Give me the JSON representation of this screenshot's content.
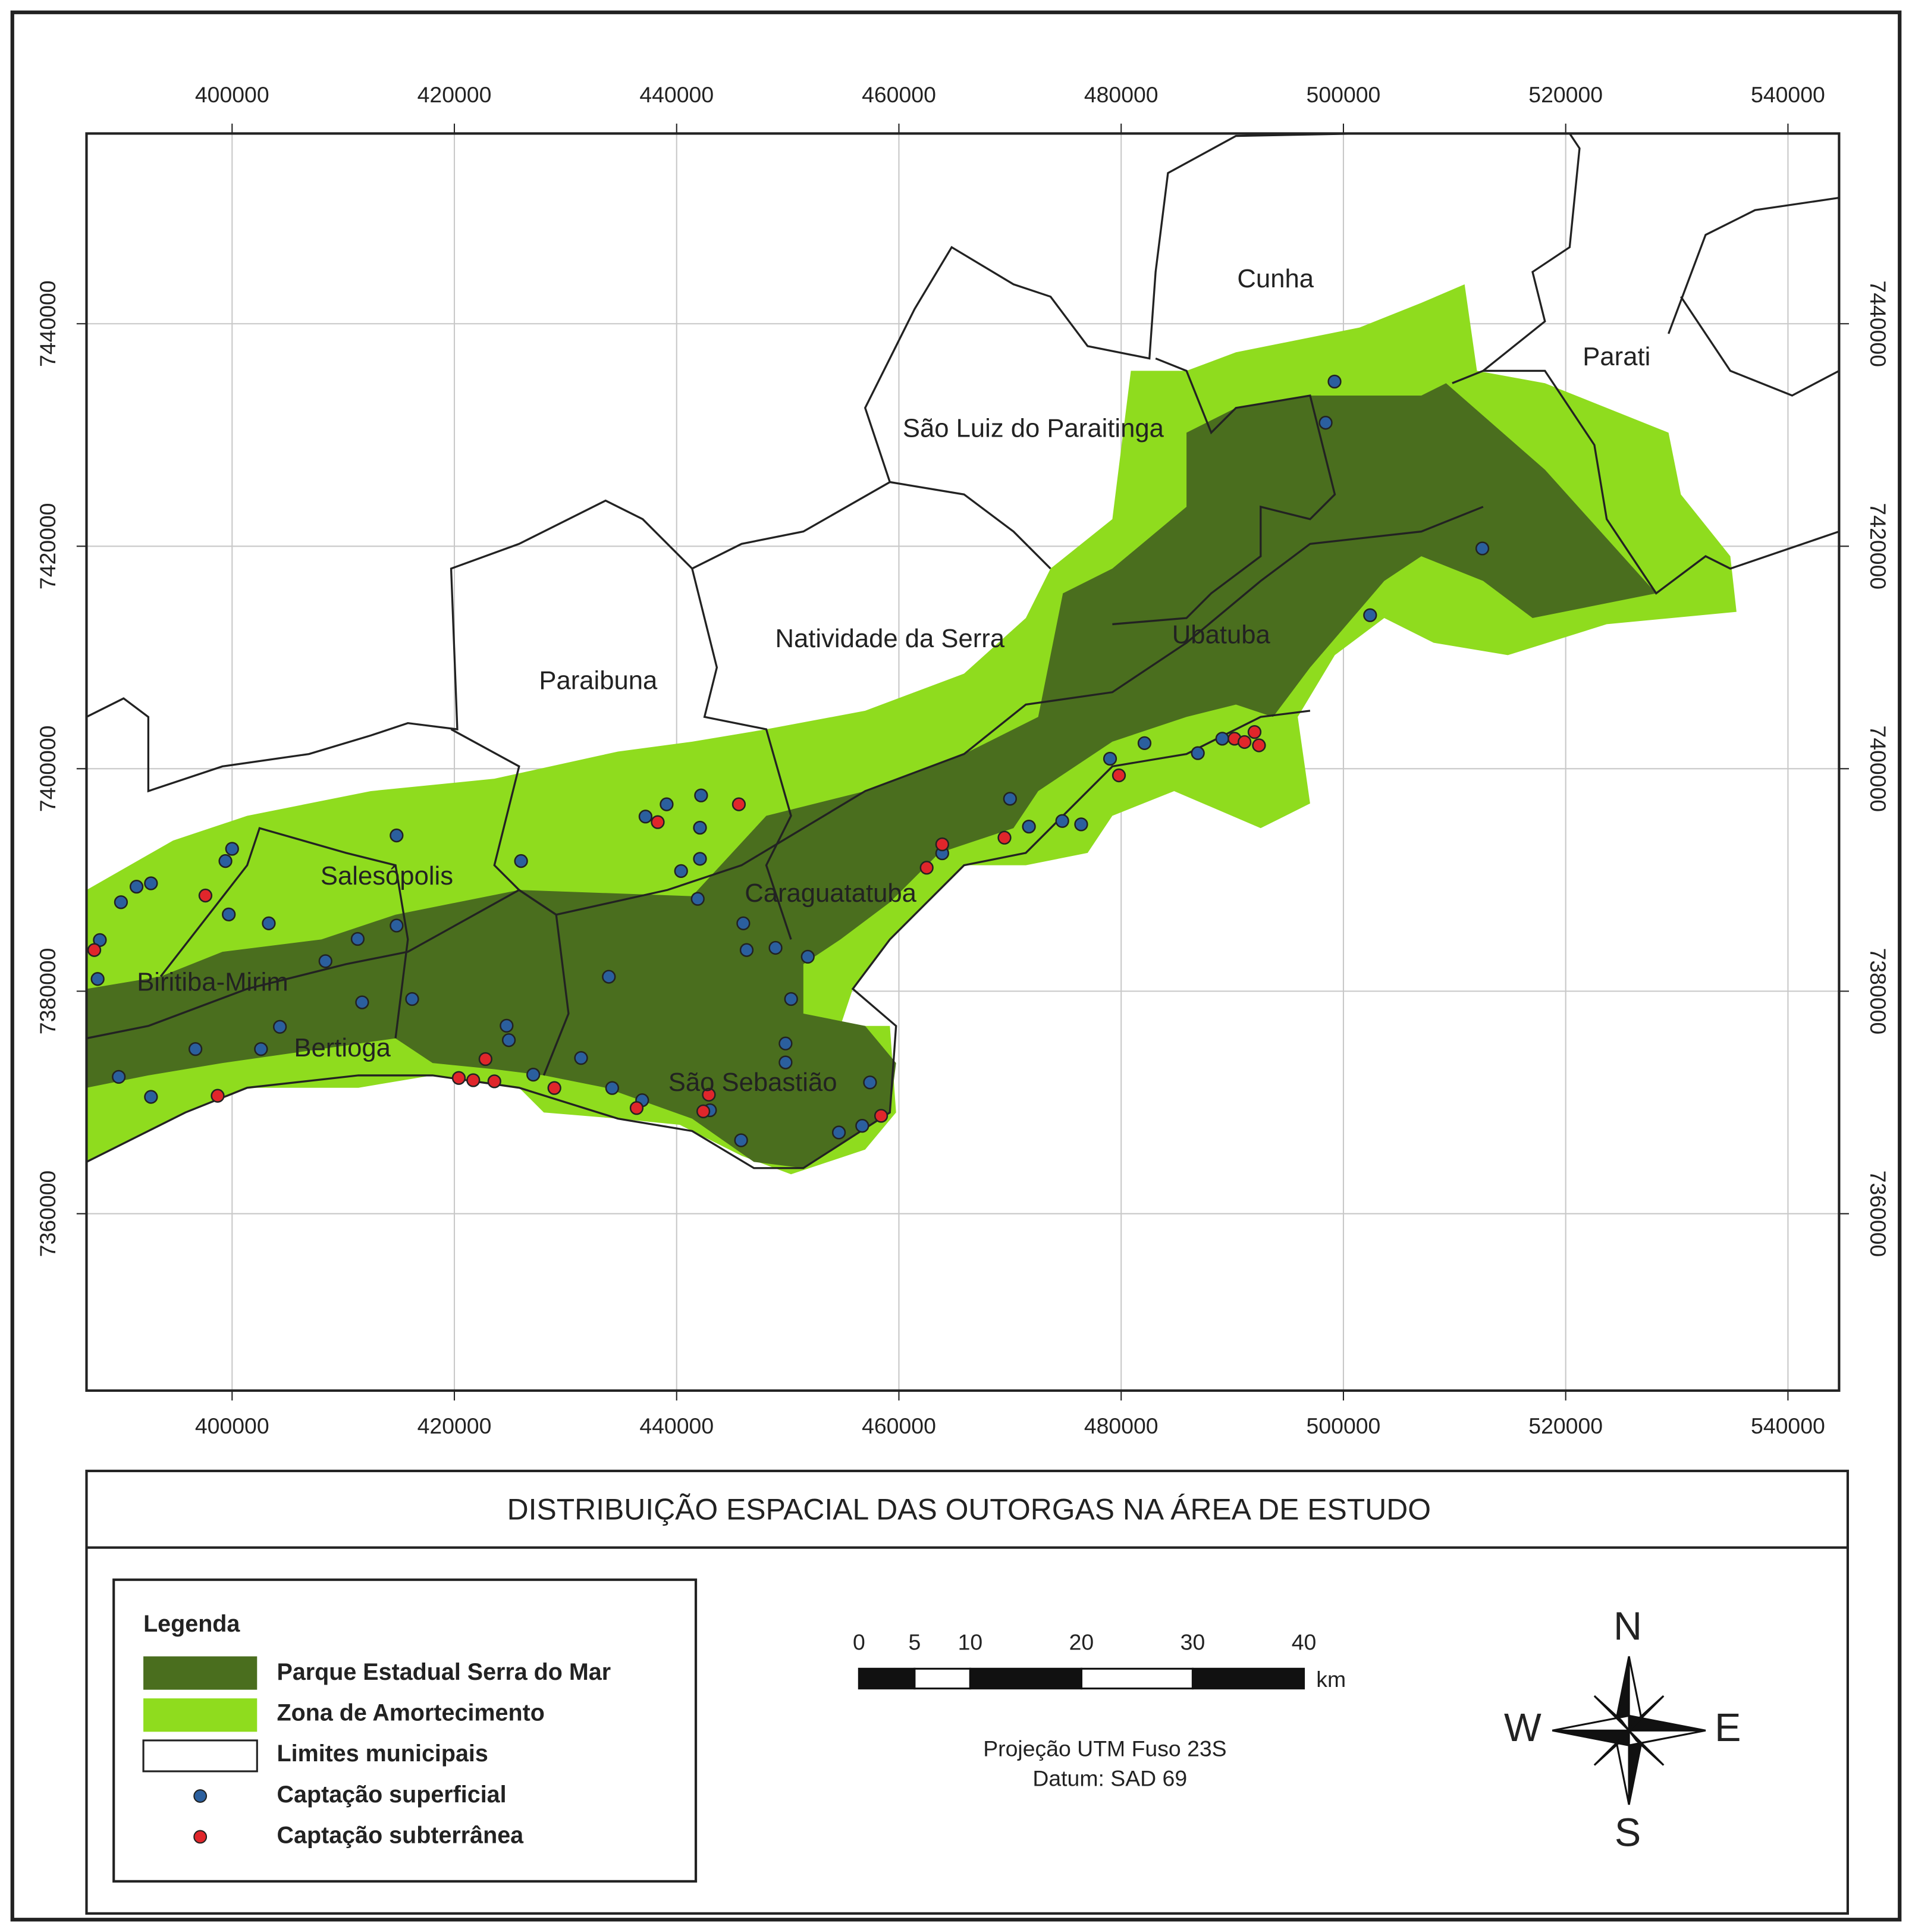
{
  "map": {
    "title": "DISTRIBUIÇÃO  ESPACIAL  DAS  OUTORGAS NA  ÁREA  DE ESTUDO",
    "xlim": [
      386900,
      544600
    ],
    "ylim": [
      7344100,
      7457100
    ],
    "xticks": [
      400000,
      420000,
      440000,
      460000,
      480000,
      500000,
      520000,
      540000
    ],
    "yticks": [
      7360000,
      7380000,
      7400000,
      7420000,
      7440000
    ],
    "grid": true,
    "places": [
      "Cunha",
      "Parati",
      "São Luiz do Paraitinga",
      "Natividade da Serra",
      "Paraibuna",
      "Ubatuba",
      "Salesópolis",
      "Caraguatatuba",
      "Biritiba-Mirim",
      "Bertioga",
      "São Sebastião"
    ],
    "series": [
      {
        "name": "Captação superficial",
        "color": "#2b5f9e",
        "x": [
          499200,
          498400,
          512500,
          502400,
          479000,
          482100,
          486900,
          489100,
          470000,
          471700,
          474700,
          476400,
          463900,
          439100,
          442200,
          437200,
          442100,
          442100,
          440400,
          441900,
          446000,
          446300,
          448900,
          451800,
          450300,
          449800,
          449800,
          445800,
          454600,
          456700,
          457400,
          433900,
          431400,
          434200,
          436900,
          443000,
          424700,
          424900,
          427100,
          414800,
          426000,
          400000,
          399400,
          392700,
          391400,
          390000,
          403300,
          399700,
          408400,
          411300,
          414800,
          416200,
          411700,
          404300,
          402600,
          396700,
          389800,
          392700,
          387900,
          388100
        ],
        "y": [
          7434800,
          7431100,
          7419800,
          7413800,
          7400900,
          7402300,
          7401400,
          7402700,
          7397300,
          7394800,
          7395300,
          7395000,
          7392400,
          7396800,
          7397600,
          7395700,
          7394700,
          7391900,
          7390800,
          7388300,
          7386100,
          7383700,
          7383900,
          7383100,
          7379300,
          7375300,
          7373600,
          7366600,
          7367300,
          7367900,
          7371800,
          7381300,
          7374000,
          7371300,
          7370200,
          7369300,
          7376900,
          7375600,
          7372500,
          7394000,
          7391700,
          7392800,
          7391700,
          7389700,
          7389400,
          7388000,
          7386100,
          7386900,
          7382700,
          7384700,
          7385900,
          7379300,
          7379000,
          7376800,
          7374800,
          7374800,
          7372300,
          7370500,
          7381100,
          7384600
        ]
      },
      {
        "name": "Captação subterrânea",
        "color": "#e0262b",
        "x": [
          397600,
          438300,
          445600,
          387600,
          398700,
          420400,
          421700,
          423600,
          422800,
          429000,
          436400,
          442400,
          442900,
          458400,
          462500,
          463900,
          469500,
          479800,
          490200,
          491100,
          492000,
          492400
        ],
        "y": [
          7388600,
          7395200,
          7396800,
          7383700,
          7370600,
          7372200,
          7372000,
          7371900,
          7373900,
          7371300,
          7369500,
          7369200,
          7370700,
          7368800,
          7391100,
          7393200,
          7393800,
          7399400,
          7402700,
          7402400,
          7403300,
          7402100
        ]
      }
    ]
  },
  "legend": {
    "title": "Legenda",
    "areas": [
      "Parque Estadual Serra do Mar",
      "Zona de Amortecimento",
      "Limites municipais"
    ]
  },
  "scale_bar": {
    "ticks": [
      0,
      5,
      10,
      20,
      30,
      40
    ],
    "unit": "km"
  },
  "projection": [
    "Projeção UTM Fuso 23S",
    "Datum: SAD 69"
  ],
  "compass": [
    "N",
    "W",
    "E",
    "S"
  ]
}
